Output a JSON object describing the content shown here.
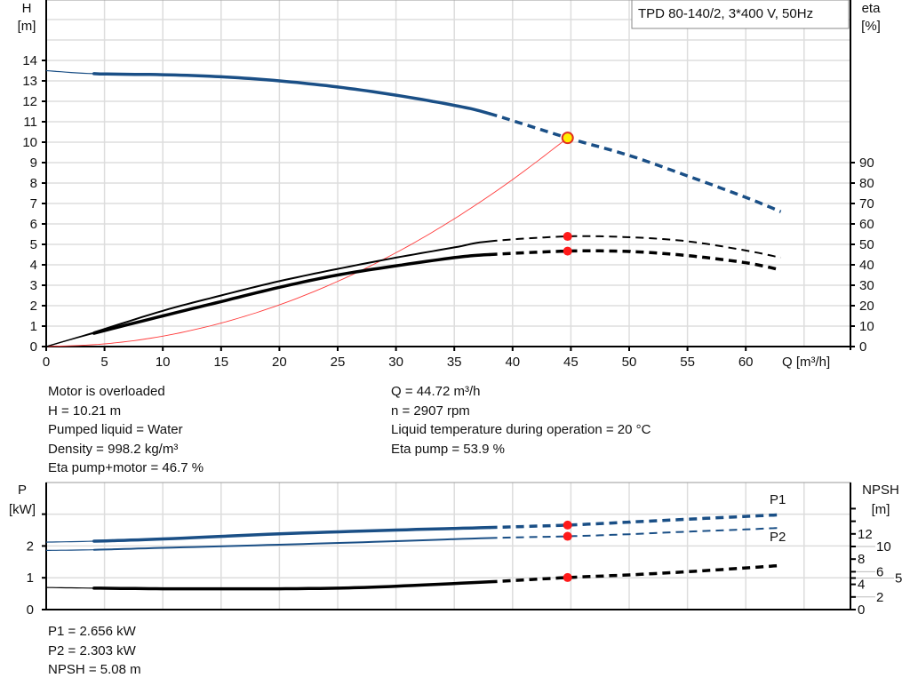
{
  "chart_data": [
    {
      "type": "line",
      "title": "TPD 80-140/2, 3*400 V, 50Hz",
      "xlabel": "Q [m³/h]",
      "ylabel": "H\n[m]",
      "ylabel_right": "eta\n[%]",
      "xlim": [
        0,
        65
      ],
      "ylim": [
        0,
        17
      ],
      "ylim_right": [
        0,
        100
      ],
      "xticks": [
        0,
        5,
        10,
        15,
        20,
        25,
        30,
        35,
        40,
        45,
        50,
        55,
        60
      ],
      "yticks": [
        0,
        1,
        2,
        3,
        4,
        5,
        6,
        7,
        8,
        9,
        10,
        11,
        12,
        13,
        14
      ],
      "yticks_right": [
        0,
        10,
        20,
        30,
        40,
        50,
        60,
        70,
        80,
        90
      ],
      "grid": true,
      "duty_point": {
        "Q": 44.72,
        "H": 10.21,
        "eta_pump": 53.9,
        "eta_total": 46.7
      },
      "series": [
        {
          "key": "H",
          "axis": "left",
          "color": "#1a4f86",
          "x": [
            0,
            4.1,
            10,
            15,
            20,
            25,
            30,
            35,
            38,
            44.72,
            50,
            55,
            60,
            63
          ],
          "y": [
            13.5,
            13.35,
            13.3,
            13.2,
            13.0,
            12.7,
            12.3,
            11.8,
            11.4,
            10.21,
            9.35,
            8.35,
            7.3,
            6.6
          ]
        },
        {
          "key": "eta_pump",
          "axis": "right",
          "color": "#000000",
          "x": [
            0,
            4.1,
            10,
            15,
            20,
            25,
            30,
            35,
            38,
            44.72,
            50,
            55,
            60,
            63
          ],
          "y": [
            0,
            7,
            17.5,
            25,
            32,
            38,
            43.5,
            48.5,
            51.5,
            53.9,
            53.5,
            51.5,
            47,
            43.5
          ]
        },
        {
          "key": "eta_total",
          "axis": "right",
          "color": "#000000",
          "x": [
            0,
            4.1,
            10,
            15,
            20,
            25,
            30,
            35,
            38,
            44.72,
            50,
            55,
            60,
            63
          ],
          "y": [
            0,
            6.5,
            15,
            22,
            29,
            35,
            39.5,
            43.5,
            45,
            46.7,
            46.5,
            44.5,
            41,
            37.5
          ]
        },
        {
          "key": "system",
          "axis": "left",
          "color": "#ff3b3b",
          "x": [
            0,
            5,
            10,
            15,
            20,
            25,
            30,
            35,
            40,
            44.72
          ],
          "y": [
            0,
            0.13,
            0.51,
            1.15,
            2.04,
            3.19,
            4.59,
            6.25,
            8.17,
            10.21
          ]
        }
      ]
    },
    {
      "type": "line",
      "ylabel": "P\n[kW]",
      "ylabel_right": "NPSH\n[m]",
      "xlim": [
        0,
        65
      ],
      "ylim": [
        0,
        3.9
      ],
      "ylim_right": [
        0,
        20
      ],
      "yticks": [
        0,
        1,
        2,
        3
      ],
      "ytick_labels": [
        "0",
        "1",
        "2",
        ""
      ],
      "yticks_right": [
        0,
        2,
        4,
        5,
        6,
        8,
        10,
        12,
        14,
        16
      ],
      "ytick_labels_right": [
        "0",
        "2",
        "4",
        "5",
        "6",
        "8",
        "10",
        "12",
        "",
        ""
      ],
      "grid": true,
      "duty_point": {
        "Q": 44.72,
        "P1": 2.656,
        "P2": 2.303,
        "NPSH": 5.08
      },
      "series": [
        {
          "name": "P1",
          "axis": "left",
          "color": "#1a4f86",
          "x": [
            0,
            4.1,
            10,
            20,
            30,
            38,
            44.72,
            50,
            55,
            60,
            63
          ],
          "y": [
            2.12,
            2.15,
            2.22,
            2.38,
            2.5,
            2.58,
            2.656,
            2.75,
            2.84,
            2.93,
            2.98
          ]
        },
        {
          "name": "P2",
          "axis": "left",
          "color": "#1a4f86",
          "x": [
            0,
            4.1,
            10,
            20,
            30,
            38,
            44.72,
            50,
            55,
            60,
            63
          ],
          "y": [
            1.86,
            1.88,
            1.94,
            2.04,
            2.15,
            2.25,
            2.303,
            2.37,
            2.45,
            2.52,
            2.57
          ]
        },
        {
          "key": "NPSH",
          "axis": "right",
          "color": "#000000",
          "x": [
            0,
            4.1,
            10,
            15,
            20,
            25,
            30,
            38,
            44.72,
            50,
            55,
            60,
            63
          ],
          "y": [
            3.5,
            3.4,
            3.3,
            3.3,
            3.3,
            3.4,
            3.7,
            4.4,
            5.08,
            5.5,
            6.0,
            6.6,
            7.0
          ]
        }
      ]
    }
  ],
  "info_top_left": [
    "Motor is overloaded",
    "H = 10.21 m",
    "Pumped liquid = Water",
    "Density = 998.2 kg/m³",
    "Eta pump+motor = 46.7 %"
  ],
  "info_top_right": [
    "Q = 44.72 m³/h",
    "n = 2907 rpm",
    "Liquid temperature during operation = 20 °C",
    "Eta pump = 53.9 %"
  ],
  "info_bottom": [
    "P1 = 2.656 kW",
    "P2 = 2.303 kW",
    "NPSH = 5.08 m"
  ]
}
